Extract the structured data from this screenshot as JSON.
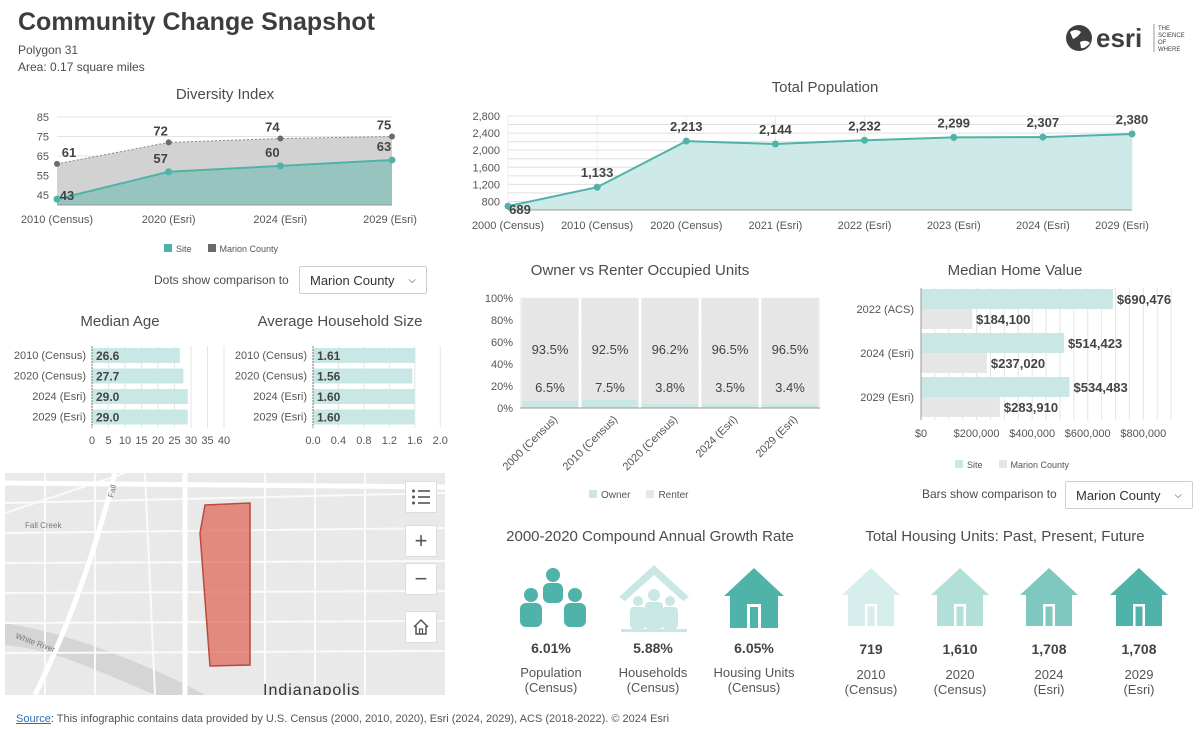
{
  "header": {
    "title": "Community Change Snapshot",
    "polygon": "Polygon 31",
    "area": "Area: 0.17 square miles",
    "logo_text": "esri",
    "logo_tagline": [
      "THE",
      "SCIENCE",
      "OF",
      "WHERE"
    ]
  },
  "colors": {
    "site": "#4fb3a9",
    "site_fill": "#c9e8e5",
    "county": "#6b6b6b",
    "county_fill": "#d2d2d2",
    "renter": "#e6e6e6",
    "parcel": "#e06a5c"
  },
  "diversity": {
    "title": "Diversity Index",
    "legend_site": "Site",
    "legend_county": "Marion County",
    "dots_label": "Dots show comparison to",
    "dropdown_value": "Marion County"
  },
  "population": {
    "title": "Total Population"
  },
  "median_age": {
    "title": "Median Age"
  },
  "household_size": {
    "title": "Average Household Size"
  },
  "tenure": {
    "title": "Owner vs Renter Occupied Units",
    "legend_owner": "Owner",
    "legend_renter": "Renter"
  },
  "home_value": {
    "title": "Median Home Value",
    "legend_site": "Site",
    "legend_county": "Marion County",
    "bars_label": "Bars show comparison to",
    "dropdown_value": "Marion County"
  },
  "map": {
    "city_label": "Indianapolis",
    "creek_label": "Fall Creek",
    "river_label": "White River",
    "other_label": "Fall"
  },
  "growth": {
    "title": "2000-2020 Compound Annual Growth Rate",
    "items": [
      {
        "value": "6.01%",
        "label": "Population",
        "sub": "(Census)",
        "icon": "people-icon"
      },
      {
        "value": "5.88%",
        "label": "Households",
        "sub": "(Census)",
        "icon": "household-icon"
      },
      {
        "value": "6.05%",
        "label": "Housing Units",
        "sub": "(Census)",
        "icon": "house-icon"
      }
    ]
  },
  "housing_units": {
    "title": "Total Housing Units: Past, Present, Future",
    "items": [
      {
        "value": "719",
        "label": "2010",
        "sub": "(Census)",
        "color": "#d6eeec"
      },
      {
        "value": "1,610",
        "label": "2020",
        "sub": "(Census)",
        "color": "#b2dfda"
      },
      {
        "value": "1,708",
        "label": "2024",
        "sub": "(Esri)",
        "color": "#7fc8c0"
      },
      {
        "value": "1,708",
        "label": "2029",
        "sub": "(Esri)",
        "color": "#4fb3a9"
      }
    ]
  },
  "source": {
    "link": "Source",
    "text": ": This infographic contains data provided by U.S. Census (2000, 2010, 2020), Esri (2024, 2029), ACS (2018-2022). © 2024 Esri"
  },
  "chart_data": [
    {
      "id": "diversity",
      "type": "area",
      "categories": [
        "2010 (Census)",
        "2020 (Esri)",
        "2024 (Esri)",
        "2029 (Esri)"
      ],
      "series": [
        {
          "name": "Site",
          "values": [
            43,
            57,
            60,
            63
          ]
        },
        {
          "name": "Marion County",
          "values": [
            61,
            72,
            74,
            75
          ]
        }
      ],
      "yticks": [
        45,
        55,
        65,
        75,
        85
      ],
      "ylim": [
        40,
        85
      ]
    },
    {
      "id": "population",
      "type": "area",
      "categories": [
        "2000 (Census)",
        "2010 (Census)",
        "2020 (Census)",
        "2021 (Esri)",
        "2022 (Esri)",
        "2023 (Esri)",
        "2024 (Esri)",
        "2029 (Esri)"
      ],
      "values": [
        689,
        1133,
        2213,
        2144,
        2232,
        2299,
        2307,
        2380
      ],
      "labels": [
        "689",
        "1,133",
        "2,213",
        "2,144",
        "2,232",
        "2,299",
        "2,307",
        "2,380"
      ],
      "yticks": [
        800,
        1200,
        1600,
        2000,
        2400,
        2800
      ],
      "ytick_labels": [
        "800",
        "1,200",
        "1,600",
        "2,000",
        "2,400",
        "2,800"
      ],
      "ylim": [
        600,
        2800
      ]
    },
    {
      "id": "median_age",
      "type": "bar",
      "categories": [
        "2010 (Census)",
        "2020 (Census)",
        "2024 (Esri)",
        "2029 (Esri)"
      ],
      "values": [
        26.6,
        27.7,
        29.0,
        29.0
      ],
      "labels": [
        "26.6",
        "27.7",
        "29.0",
        "29.0"
      ],
      "xticks": [
        0,
        5,
        10,
        15,
        20,
        25,
        30,
        35,
        40
      ],
      "xlim": [
        0,
        40
      ]
    },
    {
      "id": "household_size",
      "type": "bar",
      "categories": [
        "2010 (Census)",
        "2020 (Census)",
        "2024 (Esri)",
        "2029 (Esri)"
      ],
      "values": [
        1.61,
        1.56,
        1.6,
        1.6
      ],
      "labels": [
        "1.61",
        "1.56",
        "1.60",
        "1.60"
      ],
      "xticks": [
        0,
        0.4,
        0.8,
        1.2,
        1.6,
        2.0
      ],
      "xtick_labels": [
        "0.0",
        "0.4",
        "0.8",
        "1.2",
        "1.6",
        "2.0"
      ],
      "xlim": [
        0,
        2.2
      ]
    },
    {
      "id": "tenure",
      "type": "bar",
      "categories": [
        "2000 (Census)",
        "2010 (Census)",
        "2020 (Census)",
        "2024 (Esri)",
        "2029 (Esri)"
      ],
      "series": [
        {
          "name": "Owner",
          "values": [
            6.5,
            7.5,
            3.8,
            3.5,
            3.4
          ],
          "labels": [
            "6.5%",
            "7.5%",
            "3.8%",
            "3.5%",
            "3.4%"
          ]
        },
        {
          "name": "Renter",
          "values": [
            93.5,
            92.5,
            96.2,
            96.5,
            96.5
          ],
          "labels": [
            "93.5%",
            "92.5%",
            "96.2%",
            "96.5%",
            "96.5%"
          ]
        }
      ],
      "yticks": [
        0,
        20,
        40,
        60,
        80,
        100
      ],
      "ytick_labels": [
        "0%",
        "20%",
        "40%",
        "60%",
        "80%",
        "100%"
      ],
      "ylim": [
        0,
        100
      ]
    },
    {
      "id": "home_value",
      "type": "bar",
      "categories": [
        "2022 (ACS)",
        "2024 (Esri)",
        "2029 (Esri)"
      ],
      "series": [
        {
          "name": "Site",
          "values": [
            690476,
            514423,
            534483
          ],
          "labels": [
            "$690,476",
            "$514,423",
            "$534,483"
          ]
        },
        {
          "name": "Marion County",
          "values": [
            184100,
            237020,
            283910
          ],
          "labels": [
            "$184,100",
            "$237,020",
            "$283,910"
          ]
        }
      ],
      "xticks": [
        0,
        200000,
        400000,
        600000,
        800000
      ],
      "xtick_labels": [
        "$0",
        "$200,000",
        "$400,000",
        "$600,000",
        "$800,000"
      ],
      "xlim": [
        0,
        950000
      ]
    }
  ]
}
